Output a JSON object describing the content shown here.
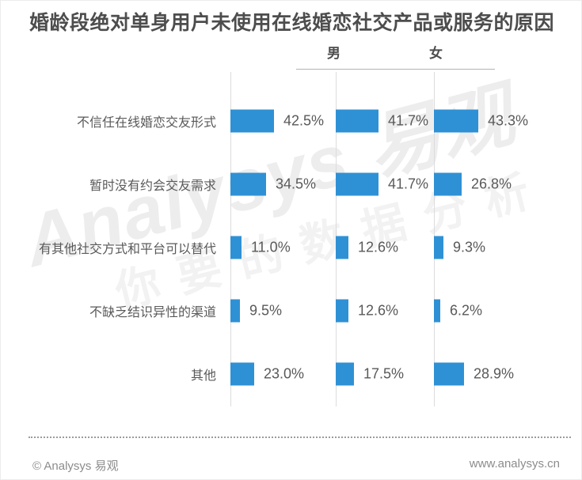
{
  "title": "婚龄段绝对单身用户未使用在线婚恋社交产品或服务的原因",
  "chart_data": {
    "type": "bar",
    "orientation": "horizontal",
    "value_labels": true,
    "unit": "%",
    "bar_color": "#2f91d5",
    "categories": [
      "不信任在线婚恋交友形式",
      "暂时没有约会交友需求",
      "有其他社交方式和平台可以替代",
      "不缺乏结识异性的渠道",
      "其他"
    ],
    "series": [
      {
        "name": "",
        "values": [
          42.5,
          34.5,
          11.0,
          9.5,
          23.0
        ]
      },
      {
        "name": "男",
        "values": [
          41.7,
          41.7,
          12.6,
          12.6,
          17.5
        ]
      },
      {
        "name": "女",
        "values": [
          43.3,
          26.8,
          9.3,
          6.2,
          28.9
        ]
      }
    ]
  },
  "watermark": {
    "brand": "Analysys 易观",
    "slogan": "你要的数据分析"
  },
  "footer": {
    "copyright": "© Analysys 易观",
    "website": "www.analysys.cn"
  }
}
